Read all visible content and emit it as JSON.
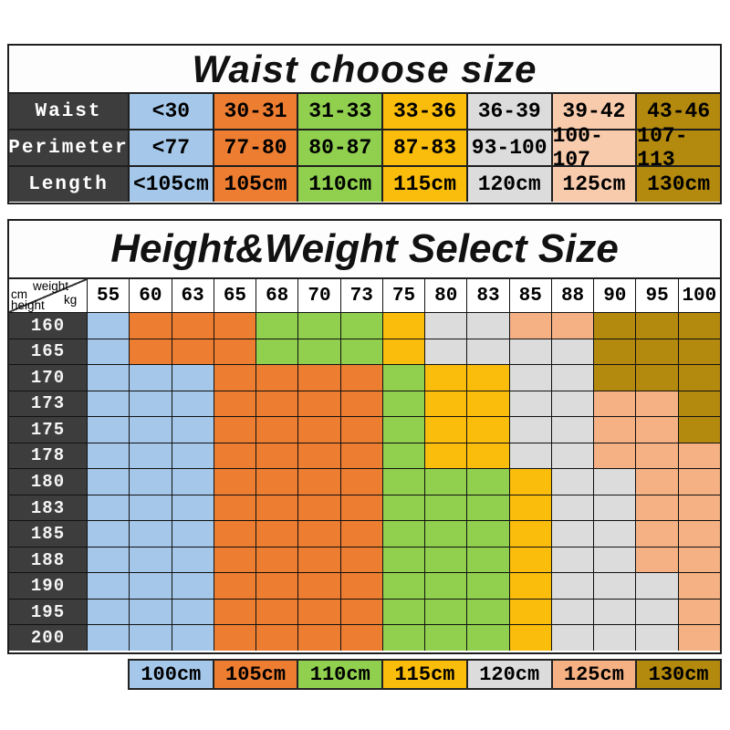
{
  "ui": {
    "corner": {
      "weight_label": "weight",
      "weight_unit": "kg",
      "height_unit": "cm",
      "height_label": "height"
    }
  },
  "palette": {
    "header_dark": "#3d3d3d",
    "grid_border": "#1a1a1a",
    "blue": "#A5C8EA",
    "orange": "#ED7D31",
    "green": "#90D04E",
    "yellow": "#FBBD0B",
    "gray": "#DCDCDC",
    "peach_light": "#F8CBAD",
    "peach": "#F5B183",
    "olive": "#B3890E"
  },
  "chart_data": [
    {
      "type": "table",
      "title": "Waist choose size",
      "column_colors": [
        "#A5C8EA",
        "#ED7D31",
        "#90D04E",
        "#FBBD0B",
        "#DCDCDC",
        "#F8CBAD",
        "#B3890E"
      ],
      "rows": [
        {
          "label": "Waist",
          "values": [
            "<30",
            "30-31",
            "31-33",
            "33-36",
            "36-39",
            "39-42",
            "43-46"
          ]
        },
        {
          "label": "Perimeter",
          "values": [
            "<77",
            "77-80",
            "80-87",
            "87-83",
            "93-100",
            "100-107",
            "107-113"
          ]
        },
        {
          "label": "Length",
          "values": [
            "<105cm",
            "105cm",
            "110cm",
            "115cm",
            "120cm",
            "125cm",
            "130cm"
          ]
        }
      ]
    },
    {
      "type": "heatmap",
      "title": "Height&Weight Select Size",
      "x_label": "weight kg",
      "y_label": "height cm",
      "x": [
        55,
        60,
        63,
        65,
        68,
        70,
        73,
        75,
        80,
        83,
        85,
        88,
        90,
        95,
        100
      ],
      "y": [
        160,
        165,
        170,
        173,
        175,
        178,
        180,
        183,
        185,
        188,
        190,
        195,
        200
      ],
      "values": [
        [
          100,
          105,
          105,
          105,
          110,
          110,
          110,
          115,
          120,
          120,
          125,
          125,
          130,
          130,
          130
        ],
        [
          100,
          105,
          105,
          105,
          110,
          110,
          110,
          115,
          120,
          120,
          120,
          120,
          130,
          130,
          130
        ],
        [
          100,
          100,
          100,
          105,
          105,
          105,
          105,
          110,
          115,
          115,
          120,
          120,
          130,
          130,
          130
        ],
        [
          100,
          100,
          100,
          105,
          105,
          105,
          105,
          110,
          115,
          115,
          120,
          120,
          125,
          125,
          130
        ],
        [
          100,
          100,
          100,
          105,
          105,
          105,
          105,
          110,
          115,
          115,
          120,
          120,
          125,
          125,
          130
        ],
        [
          100,
          100,
          100,
          105,
          105,
          105,
          105,
          110,
          115,
          115,
          120,
          120,
          125,
          125,
          125
        ],
        [
          100,
          100,
          100,
          105,
          105,
          105,
          105,
          110,
          110,
          110,
          115,
          120,
          120,
          125,
          125
        ],
        [
          100,
          100,
          100,
          105,
          105,
          105,
          105,
          110,
          110,
          110,
          115,
          120,
          120,
          125,
          125
        ],
        [
          100,
          100,
          100,
          105,
          105,
          105,
          105,
          110,
          110,
          110,
          115,
          120,
          120,
          125,
          125
        ],
        [
          100,
          100,
          100,
          105,
          105,
          105,
          105,
          110,
          110,
          110,
          115,
          120,
          120,
          125,
          125
        ],
        [
          100,
          100,
          100,
          105,
          105,
          105,
          105,
          110,
          110,
          110,
          115,
          120,
          120,
          120,
          125
        ],
        [
          100,
          100,
          100,
          105,
          105,
          105,
          105,
          110,
          110,
          110,
          115,
          120,
          120,
          120,
          125
        ],
        [
          100,
          100,
          100,
          105,
          105,
          105,
          105,
          110,
          110,
          110,
          115,
          120,
          120,
          120,
          125
        ]
      ],
      "legend": [
        {
          "size": "100cm",
          "color": "#A5C8EA"
        },
        {
          "size": "105cm",
          "color": "#ED7D31"
        },
        {
          "size": "110cm",
          "color": "#90D04E"
        },
        {
          "size": "115cm",
          "color": "#FBBD0B"
        },
        {
          "size": "120cm",
          "color": "#DCDCDC"
        },
        {
          "size": "125cm",
          "color": "#F5B183"
        },
        {
          "size": "130cm",
          "color": "#B3890E"
        }
      ]
    }
  ]
}
